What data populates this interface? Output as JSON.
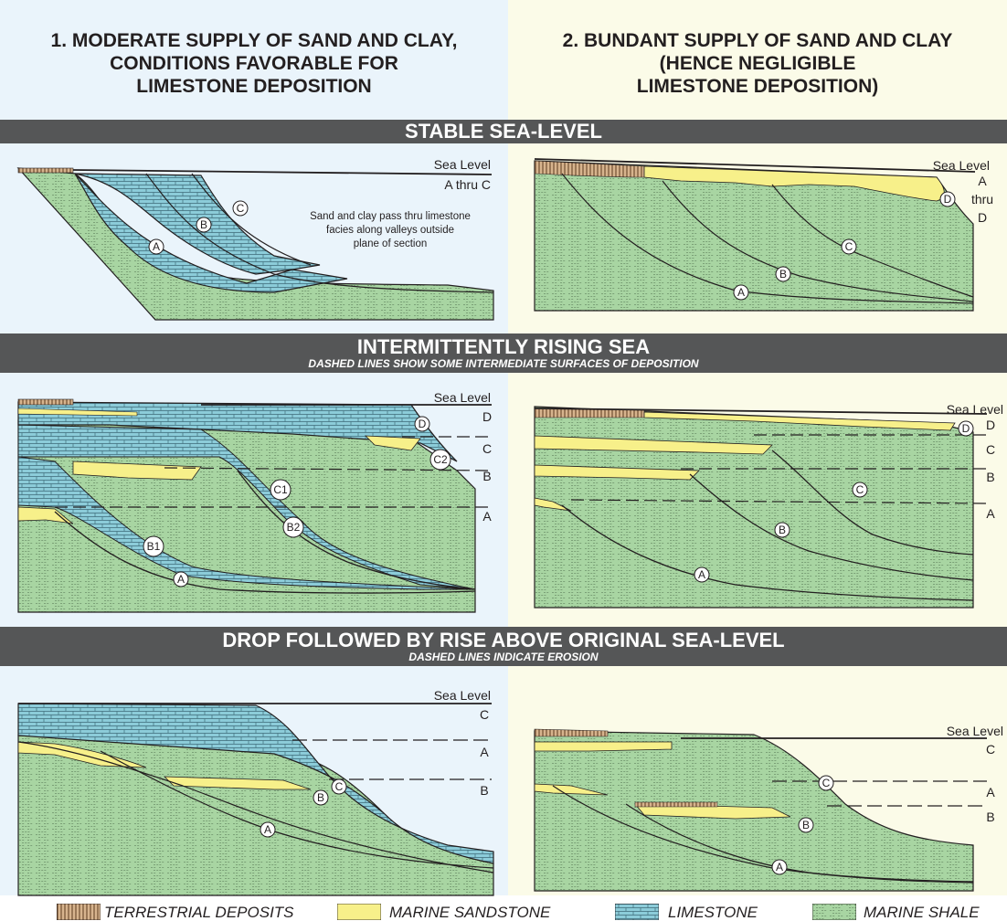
{
  "column_left_title": [
    "1. MODERATE SUPPLY OF SAND AND CLAY,",
    "CONDITIONS FAVORABLE FOR",
    "LIMESTONE DEPOSITION"
  ],
  "column_right_title": [
    "2. BUNDANT SUPPLY OF SAND AND CLAY",
    "(HENCE NEGLIGIBLE",
    "LIMESTONE DEPOSITION)"
  ],
  "band_stable": {
    "title": "STABLE SEA-LEVEL"
  },
  "band_rising": {
    "title": "INTERMITTENTLY RISING SEA",
    "subtitle": "DASHED LINES SHOW SOME INTERMEDIATE SURFACES OF DEPOSITION"
  },
  "band_drop": {
    "title": "DROP FOLLOWED BY RISE ABOVE ORIGINAL SEA-LEVEL",
    "subtitle": "DASHED LINES INDICATE EROSION"
  },
  "sea_level": "Sea Level",
  "stable_left": {
    "range_label": "A thru C",
    "note": [
      "Sand and clay pass thru limestone",
      "facies along valleys outside",
      "plane of section"
    ],
    "markers": [
      "A",
      "B",
      "C"
    ]
  },
  "stable_right": {
    "range_label": [
      "A",
      "thru",
      "D"
    ],
    "markers": [
      "A",
      "B",
      "C",
      "D"
    ]
  },
  "rising_left": {
    "levels": [
      "D",
      "C",
      "B",
      "A"
    ],
    "markers": [
      "A",
      "B1",
      "B2",
      "C1",
      "C2",
      "D"
    ]
  },
  "rising_right": {
    "levels": [
      "D",
      "C",
      "B",
      "A"
    ],
    "markers": [
      "A",
      "B",
      "C",
      "D"
    ]
  },
  "drop_left": {
    "levels": [
      "C",
      "A",
      "B"
    ],
    "markers": [
      "A",
      "B",
      "C"
    ]
  },
  "drop_right": {
    "levels": [
      "C",
      "A",
      "B"
    ],
    "markers": [
      "A",
      "B",
      "C"
    ]
  },
  "legend": {
    "terrestrial": "TERRESTRIAL DEPOSITS",
    "sandstone": "MARINE SANDSTONE",
    "limestone": "LIMESTONE",
    "shale": "MARINE SHALE"
  },
  "colors": {
    "limestone": "#8cccd9",
    "shale": "#a8d5a2",
    "sandstone": "#f7f08a",
    "terrestrial": "#c9a27a",
    "band": "#555657"
  }
}
